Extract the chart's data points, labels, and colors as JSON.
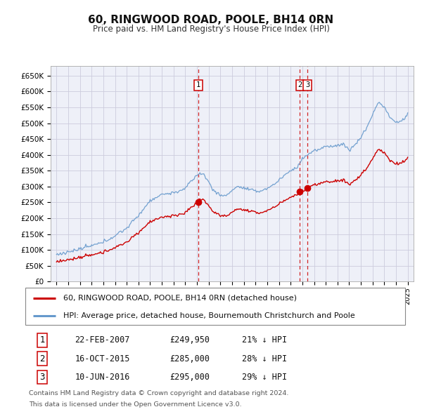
{
  "title": "60, RINGWOOD ROAD, POOLE, BH14 0RN",
  "subtitle": "Price paid vs. HM Land Registry's House Price Index (HPI)",
  "legend_line1": "60, RINGWOOD ROAD, POOLE, BH14 0RN (detached house)",
  "legend_line2": "HPI: Average price, detached house, Bournemouth Christchurch and Poole",
  "footer1": "Contains HM Land Registry data © Crown copyright and database right 2024.",
  "footer2": "This data is licensed under the Open Government Licence v3.0.",
  "transactions": [
    {
      "num": 1,
      "date": "22-FEB-2007",
      "price": "£249,950",
      "pct": "21% ↓ HPI",
      "year": 2007.13,
      "price_val": 249950
    },
    {
      "num": 2,
      "date": "16-OCT-2015",
      "price": "£285,000",
      "pct": "28% ↓ HPI",
      "year": 2015.79,
      "price_val": 285000
    },
    {
      "num": 3,
      "date": "10-JUN-2016",
      "price": "£295,000",
      "pct": "29% ↓ HPI",
      "year": 2016.44,
      "price_val": 295000
    }
  ],
  "hpi_color": "#6699cc",
  "sale_color": "#cc0000",
  "grid_color": "#ccccdd",
  "background_color": "#ffffff",
  "plot_bg_color": "#eef0f8",
  "ylim": [
    0,
    680000
  ],
  "yticks": [
    0,
    50000,
    100000,
    150000,
    200000,
    250000,
    300000,
    350000,
    400000,
    450000,
    500000,
    550000,
    600000,
    650000
  ],
  "xlim_start": 1994.5,
  "xlim_end": 2025.5
}
